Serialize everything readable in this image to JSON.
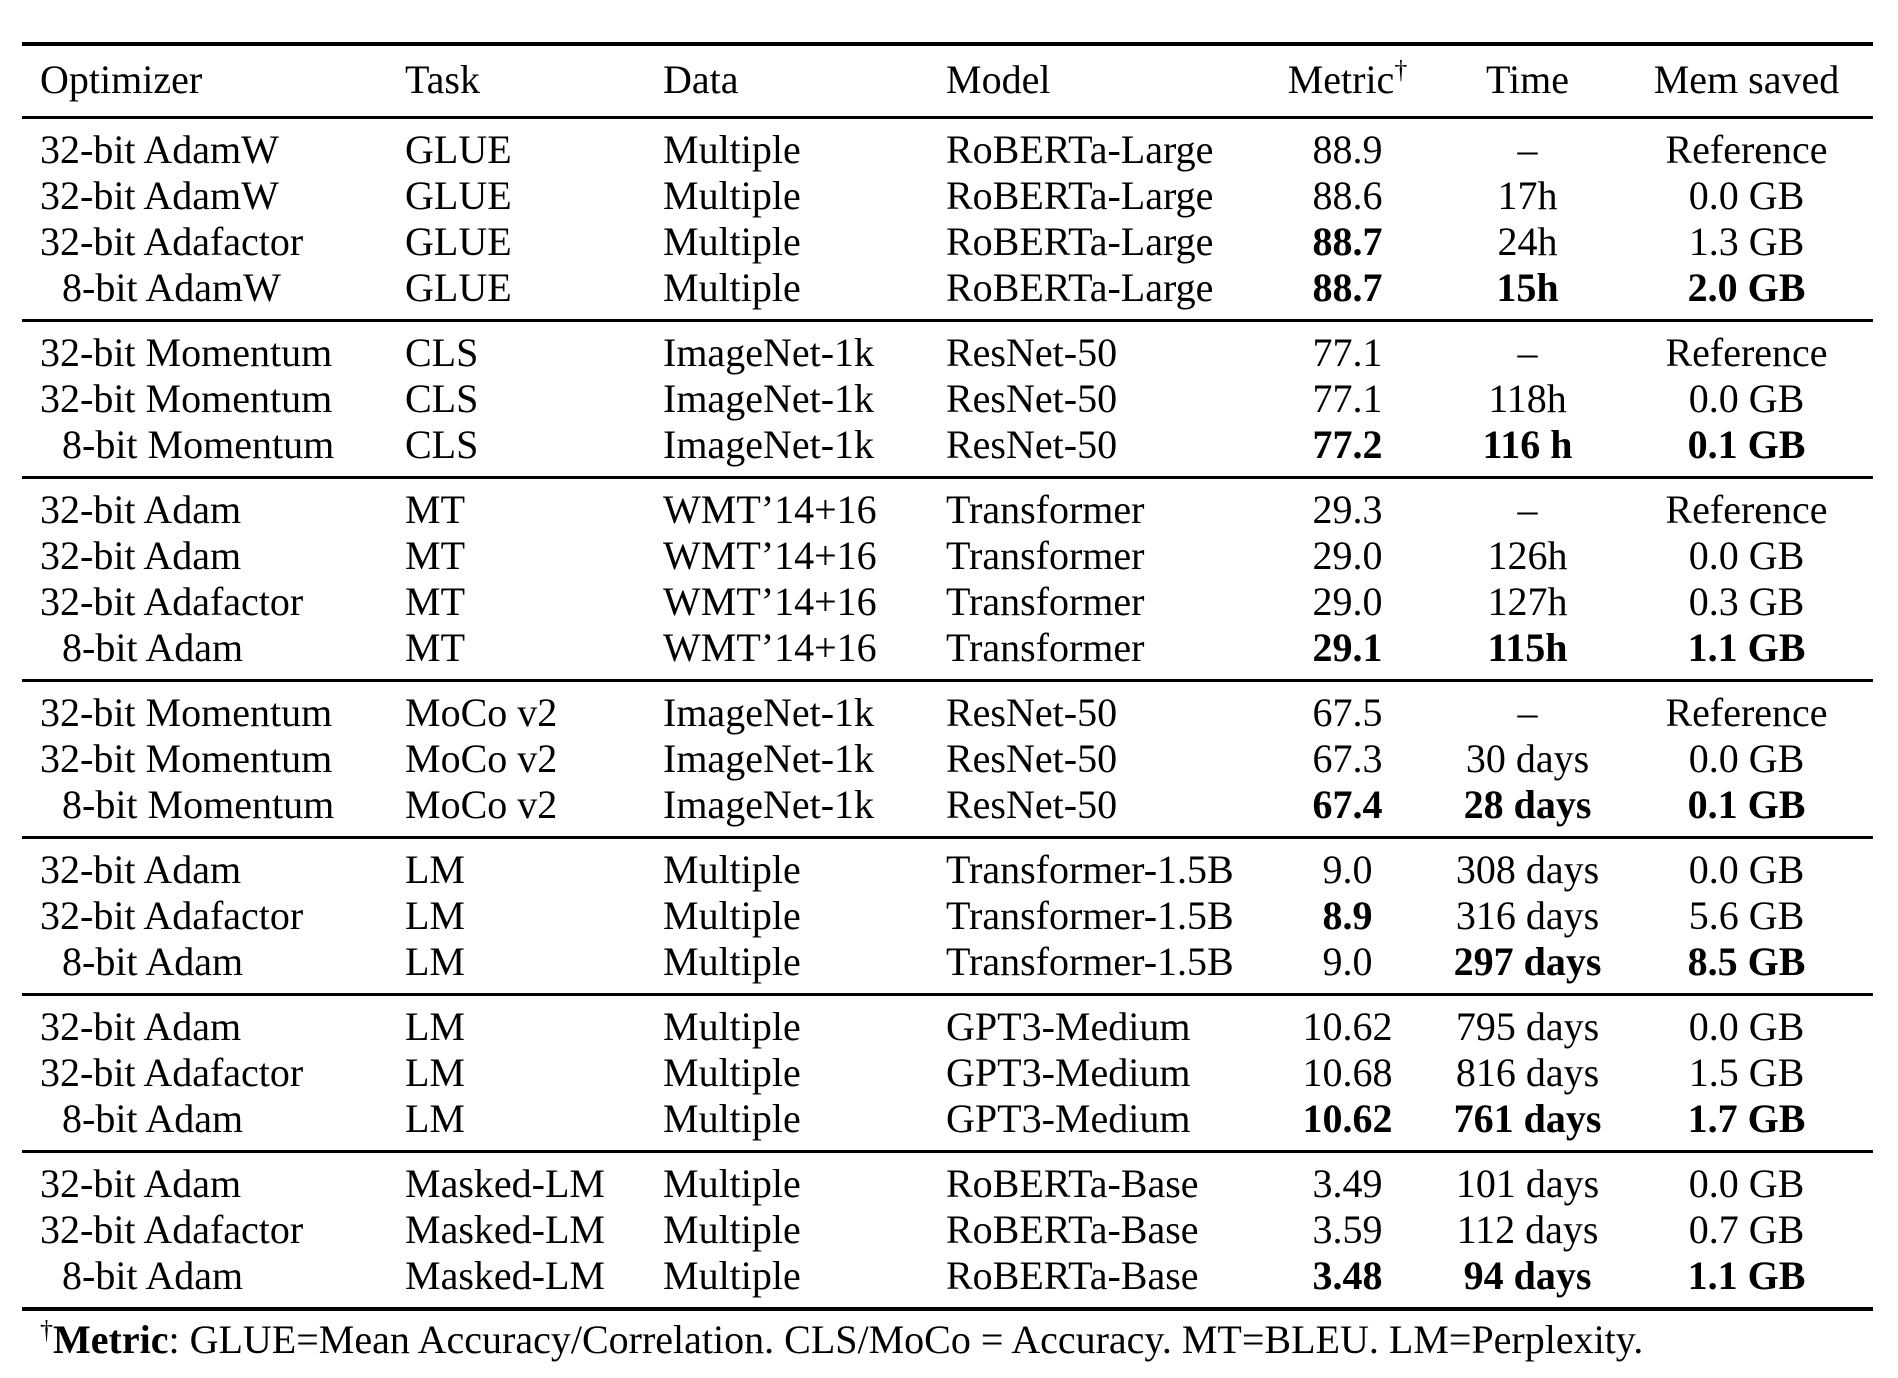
{
  "table": {
    "dagger": "†",
    "columns": [
      {
        "key": "optimizer",
        "label": "Optimizer"
      },
      {
        "key": "task",
        "label": "Task"
      },
      {
        "key": "data",
        "label": "Data"
      },
      {
        "key": "model",
        "label": "Model"
      },
      {
        "key": "metric",
        "label": "Metric"
      },
      {
        "key": "time",
        "label": "Time"
      },
      {
        "key": "mem_saved",
        "label": "Mem saved"
      }
    ],
    "groups": [
      {
        "rows": [
          {
            "cells": [
              "32-bit AdamW",
              "GLUE",
              "Multiple",
              "RoBERTa-Large",
              "88.9",
              "–",
              "Reference"
            ],
            "bold": []
          },
          {
            "cells": [
              "32-bit AdamW",
              "GLUE",
              "Multiple",
              "RoBERTa-Large",
              "88.6",
              "17h",
              "0.0 GB"
            ],
            "bold": []
          },
          {
            "cells": [
              "32-bit Adafactor",
              "GLUE",
              "Multiple",
              "RoBERTa-Large",
              "88.7",
              "24h",
              "1.3 GB"
            ],
            "bold": [
              4
            ]
          },
          {
            "cells": [
              "8-bit AdamW",
              "GLUE",
              "Multiple",
              "RoBERTa-Large",
              "88.7",
              "15h",
              "2.0 GB"
            ],
            "bold": [
              4,
              5,
              6
            ]
          }
        ]
      },
      {
        "rows": [
          {
            "cells": [
              "32-bit Momentum",
              "CLS",
              "ImageNet-1k",
              "ResNet-50",
              "77.1",
              "–",
              "Reference"
            ],
            "bold": []
          },
          {
            "cells": [
              "32-bit Momentum",
              "CLS",
              "ImageNet-1k",
              "ResNet-50",
              "77.1",
              "118h",
              "0.0 GB"
            ],
            "bold": []
          },
          {
            "cells": [
              "8-bit Momentum",
              "CLS",
              "ImageNet-1k",
              "ResNet-50",
              "77.2",
              "116 h",
              "0.1 GB"
            ],
            "bold": [
              4,
              5,
              6
            ]
          }
        ]
      },
      {
        "rows": [
          {
            "cells": [
              "32-bit Adam",
              "MT",
              "WMT’14+16",
              "Transformer",
              "29.3",
              "–",
              "Reference"
            ],
            "bold": []
          },
          {
            "cells": [
              "32-bit Adam",
              "MT",
              "WMT’14+16",
              "Transformer",
              "29.0",
              "126h",
              "0.0 GB"
            ],
            "bold": []
          },
          {
            "cells": [
              "32-bit Adafactor",
              "MT",
              "WMT’14+16",
              "Transformer",
              "29.0",
              "127h",
              "0.3 GB"
            ],
            "bold": []
          },
          {
            "cells": [
              "8-bit Adam",
              "MT",
              "WMT’14+16",
              "Transformer",
              "29.1",
              "115h",
              "1.1 GB"
            ],
            "bold": [
              4,
              5,
              6
            ]
          }
        ]
      },
      {
        "rows": [
          {
            "cells": [
              "32-bit Momentum",
              "MoCo v2",
              "ImageNet-1k",
              "ResNet-50",
              "67.5",
              "–",
              "Reference"
            ],
            "bold": []
          },
          {
            "cells": [
              "32-bit Momentum",
              "MoCo v2",
              "ImageNet-1k",
              "ResNet-50",
              "67.3",
              "30 days",
              "0.0 GB"
            ],
            "bold": []
          },
          {
            "cells": [
              "8-bit Momentum",
              "MoCo v2",
              "ImageNet-1k",
              "ResNet-50",
              "67.4",
              "28 days",
              "0.1 GB"
            ],
            "bold": [
              4,
              5,
              6
            ]
          }
        ]
      },
      {
        "rows": [
          {
            "cells": [
              "32-bit Adam",
              "LM",
              "Multiple",
              "Transformer-1.5B",
              "9.0",
              "308 days",
              "0.0 GB"
            ],
            "bold": []
          },
          {
            "cells": [
              "32-bit Adafactor",
              "LM",
              "Multiple",
              "Transformer-1.5B",
              "8.9",
              "316 days",
              "5.6 GB"
            ],
            "bold": [
              4
            ]
          },
          {
            "cells": [
              "8-bit Adam",
              "LM",
              "Multiple",
              "Transformer-1.5B",
              "9.0",
              "297 days",
              "8.5 GB"
            ],
            "bold": [
              5,
              6
            ]
          }
        ]
      },
      {
        "rows": [
          {
            "cells": [
              "32-bit Adam",
              "LM",
              "Multiple",
              "GPT3-Medium",
              "10.62",
              "795 days",
              "0.0 GB"
            ],
            "bold": []
          },
          {
            "cells": [
              "32-bit Adafactor",
              "LM",
              "Multiple",
              "GPT3-Medium",
              "10.68",
              "816 days",
              "1.5 GB"
            ],
            "bold": []
          },
          {
            "cells": [
              "8-bit Adam",
              "LM",
              "Multiple",
              "GPT3-Medium",
              "10.62",
              "761 days",
              "1.7 GB"
            ],
            "bold": [
              4,
              5,
              6
            ]
          }
        ]
      },
      {
        "rows": [
          {
            "cells": [
              "32-bit Adam",
              "Masked-LM",
              "Multiple",
              "RoBERTa-Base",
              "3.49",
              "101 days",
              "0.0 GB"
            ],
            "bold": []
          },
          {
            "cells": [
              "32-bit Adafactor",
              "Masked-LM",
              "Multiple",
              "RoBERTa-Base",
              "3.59",
              "112 days",
              "0.7 GB"
            ],
            "bold": []
          },
          {
            "cells": [
              "8-bit Adam",
              "Masked-LM",
              "Multiple",
              "RoBERTa-Base",
              "3.48",
              "94 days",
              "1.1 GB"
            ],
            "bold": [
              4,
              5,
              6
            ]
          }
        ]
      }
    ]
  },
  "footnote": {
    "dagger": "†",
    "label": "Metric",
    "text": ": GLUE=Mean Accuracy/Correlation. CLS/MoCo = Accuracy. MT=BLEU. LM=Perplexity."
  }
}
